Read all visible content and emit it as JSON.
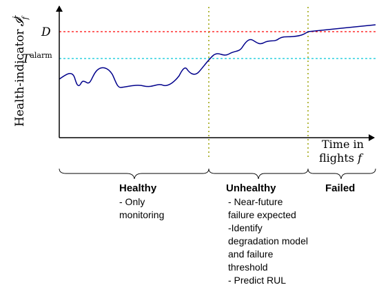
{
  "axis": {
    "y_label_text": "Health-indicator",
    "y_label_symbol": "𝓘",
    "y_label_sup": "i",
    "y_label_sub": "f",
    "x_label_line1": "Time in",
    "x_label_line2_text": "flights ",
    "x_label_line2_symbol": "f"
  },
  "thresholds": {
    "d": {
      "label": "D",
      "color": "#ff0000"
    },
    "alarm": {
      "label_base": "T",
      "label_sup": "alarm",
      "color": "#00c8d8"
    }
  },
  "phases": {
    "healthy": {
      "title": "Healthy",
      "lines": [
        "- Only",
        "monitoring"
      ]
    },
    "unhealthy": {
      "title": "Unhealthy",
      "lines": [
        "- Near-future",
        "failure expected",
        "-Identify",
        "degradation model",
        "and failure",
        "threshold",
        "- Predict RUL"
      ]
    },
    "failed": {
      "title": "Failed",
      "lines": []
    }
  },
  "colors": {
    "curve": "#00008b",
    "boundary": "#9aa000",
    "axis": "#000000"
  }
}
